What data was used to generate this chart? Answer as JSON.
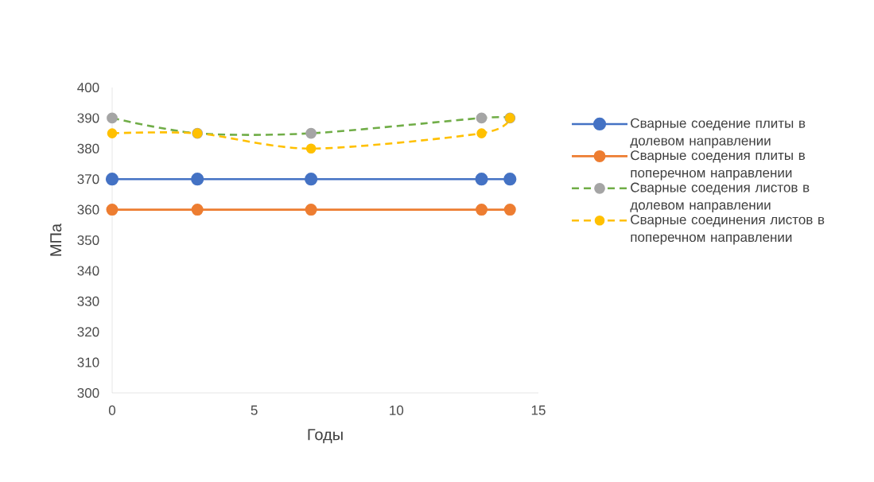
{
  "chart_data": {
    "type": "line",
    "xlabel": "Годы",
    "ylabel": "МПа",
    "x": [
      0,
      3,
      7,
      13,
      14
    ],
    "series": [
      {
        "name": "Сварные соедение плиты в долевом направлении",
        "color": "#4472c4",
        "values": [
          370,
          370,
          370,
          370,
          370
        ]
      },
      {
        "name": "Сварные соедения плиты в поперечном направлении",
        "color": "#ed7d31",
        "values": [
          360,
          360,
          360,
          360,
          360
        ]
      },
      {
        "name": "Сварные соедения листов в долевом направлении",
        "color": "#70ad47",
        "colors": [
          "#a5a5a5",
          "#a5a5a5",
          "#a5a5a5",
          "#a5a5a5",
          "#a5a5a5"
        ],
        "line_style": "dashed",
        "values": [
          390,
          385,
          385,
          390,
          390
        ]
      },
      {
        "name": "Сварные соединения листов в поперечном направлении",
        "color": "#ffc000",
        "line_style": "dashed",
        "values": [
          385,
          385,
          380,
          385,
          390
        ]
      }
    ],
    "xlim": [
      0,
      15
    ],
    "xticks": [
      0,
      5,
      10,
      15
    ],
    "ylim": [
      300,
      400
    ],
    "yticks": [
      300,
      310,
      320,
      330,
      340,
      350,
      360,
      370,
      380,
      390,
      400
    ],
    "marker": "circle",
    "legend": "right",
    "grid": false
  }
}
